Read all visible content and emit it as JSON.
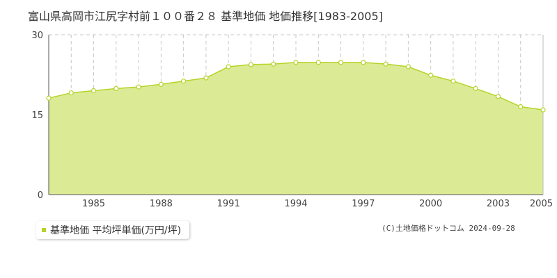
{
  "chart_data": {
    "type": "area",
    "title": "富山県高岡市江尻字村前１００番２８ 基準地価 地価推移[1983-2005]",
    "x": [
      1983,
      1984,
      1985,
      1986,
      1987,
      1988,
      1989,
      1990,
      1991,
      1992,
      1993,
      1994,
      1995,
      1996,
      1997,
      1998,
      1999,
      2000,
      2001,
      2002,
      2003,
      2004,
      2005
    ],
    "series": [
      {
        "name": "基準地価 平均坪単価(万円/坪)",
        "values": [
          18.1,
          19.1,
          19.5,
          19.9,
          20.2,
          20.7,
          21.3,
          21.9,
          24.0,
          24.4,
          24.5,
          24.8,
          24.8,
          24.8,
          24.8,
          24.5,
          24.0,
          22.4,
          21.3,
          19.9,
          18.4,
          16.5,
          15.9
        ]
      }
    ],
    "xticks": [
      "1985",
      "1988",
      "1991",
      "1994",
      "1997",
      "2000",
      "2003",
      "2005"
    ],
    "yticks": [
      "0",
      "15",
      "30"
    ],
    "ylim": [
      0,
      30
    ],
    "xlim": [
      1983,
      2005
    ],
    "xlabel": "",
    "ylabel": "",
    "grid": true,
    "legend": "bottom-left",
    "colors": {
      "fill": "#dbeb95",
      "line": "#b5d327",
      "marker_fill": "#ffffff"
    }
  },
  "credit": "(C)土地価格ドットコム 2024-09-28"
}
